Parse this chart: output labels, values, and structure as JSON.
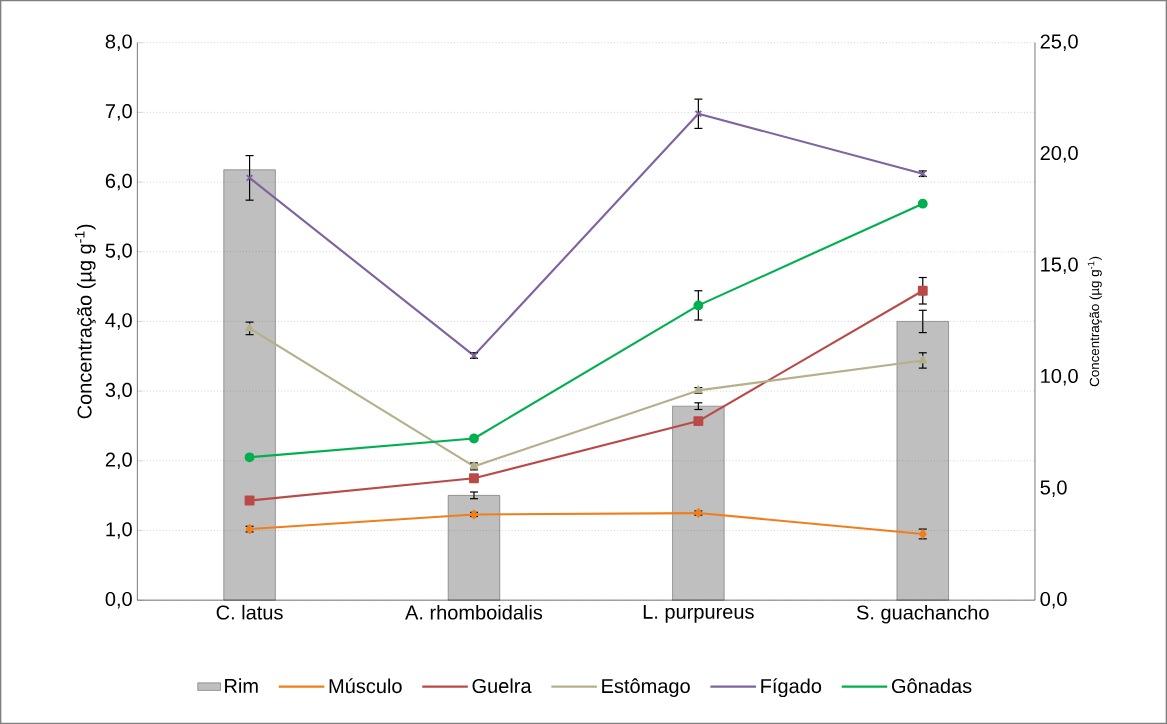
{
  "chart_data": {
    "type": "line",
    "categories": [
      "C. latus",
      "A. rhomboidalis",
      "L. purpureus",
      "S. guachancho"
    ],
    "ylabel": "Concentração (µg g$^{-1}$)",
    "y2label": "Concentração (µg g$^{-1}$)",
    "ylim": [
      0,
      8
    ],
    "yticks": [
      {
        "value": 0,
        "label": "0,0"
      },
      {
        "value": 1,
        "label": "1,0"
      },
      {
        "value": 2,
        "label": "2,0"
      },
      {
        "value": 3,
        "label": "3,0"
      },
      {
        "value": 4,
        "label": "4,0"
      },
      {
        "value": 5,
        "label": "5,0"
      },
      {
        "value": 6,
        "label": "6,0"
      },
      {
        "value": 7,
        "label": "7,0"
      },
      {
        "value": 8,
        "label": "8,0"
      }
    ],
    "y2lim": [
      0,
      25
    ],
    "y2ticks": [
      {
        "value": 0,
        "label": "0,0"
      },
      {
        "value": 5,
        "label": "5,0"
      },
      {
        "value": 10,
        "label": "10,0"
      },
      {
        "value": 15,
        "label": "15,0"
      },
      {
        "value": 20,
        "label": "20,0"
      },
      {
        "value": 25,
        "label": "25,0"
      }
    ],
    "grid": "y",
    "legend": "bottom",
    "series": [
      {
        "name": "Rim",
        "type": "bar",
        "axis": "y2",
        "color": "#bfbfbf",
        "values": [
          19.3,
          4.7,
          8.7,
          12.5
        ],
        "errors": [
          null,
          0.15,
          0.15,
          0.5
        ]
      },
      {
        "name": "Músculo",
        "color": "#f07f1b",
        "marker": "diamond",
        "values": [
          1.02,
          1.23,
          1.25,
          0.95
        ],
        "errors": [
          0.04,
          0.03,
          0.03,
          0.07
        ]
      },
      {
        "name": "Guelra",
        "color": "#b94a48",
        "marker": "square",
        "values": [
          1.43,
          1.75,
          2.57,
          4.44
        ],
        "errors": [
          null,
          null,
          null,
          0.19
        ]
      },
      {
        "name": "Estômago",
        "color": "#b5b08a",
        "marker": "triangle",
        "values": [
          3.9,
          1.92,
          3.01,
          3.44
        ],
        "errors": [
          0.09,
          0.05,
          0.04,
          0.11
        ]
      },
      {
        "name": "Fígado",
        "color": "#7f63a0",
        "marker": "cross",
        "values": [
          6.06,
          3.51,
          6.98,
          6.12
        ],
        "errors": [
          0.32,
          0.04,
          0.21,
          0.04
        ]
      },
      {
        "name": "Gônadas",
        "color": "#00b050",
        "marker": "circle",
        "values": [
          2.05,
          2.32,
          4.23,
          5.69
        ],
        "errors": [
          0.03,
          0.03,
          0.21,
          0.03
        ]
      }
    ]
  }
}
